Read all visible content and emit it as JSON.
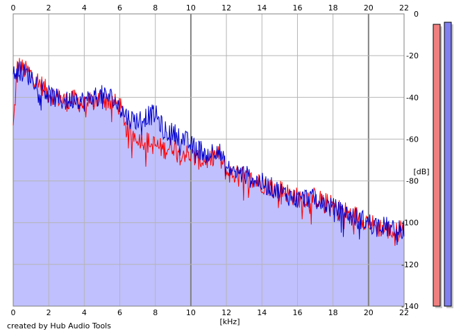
{
  "credit": "created by Hub Audio Tools",
  "chart_data": {
    "type": "area",
    "xlabel": "[kHz]",
    "ylabel": "[dB]",
    "xlim": [
      0,
      22
    ],
    "ylim": [
      -140,
      0
    ],
    "x_ticks": [
      0,
      2,
      4,
      6,
      8,
      10,
      12,
      14,
      16,
      18,
      20,
      22
    ],
    "y_ticks": [
      0,
      -20,
      -40,
      -60,
      -80,
      -100,
      -120,
      -140
    ],
    "y_tick_labels": [
      "0",
      "-20",
      "-40",
      "-60",
      "-80",
      "-100",
      "-120",
      "-140"
    ],
    "grid": true,
    "colors": {
      "fill": "#c0c0ff",
      "left": "#ff0000",
      "right": "#0000cc",
      "meter_left": "#f08080",
      "meter_right": "#8080f0",
      "meter_shadow": "#c8c8c8",
      "grid": "#b4b4b4",
      "grid_major": "#808080"
    },
    "series": [
      {
        "color": "#ff0000",
        "x": [
          0,
          0.25,
          0.5,
          1,
          1.5,
          2,
          2.5,
          3,
          3.5,
          4,
          4.5,
          5,
          5.5,
          6,
          6.5,
          7,
          7.5,
          8,
          8.5,
          9,
          9.5,
          10,
          10.5,
          11,
          11.5,
          12,
          12.5,
          13,
          13.5,
          14,
          14.5,
          15,
          15.5,
          16,
          16.5,
          17,
          17.5,
          18,
          18.5,
          19,
          19.5,
          20,
          20.5,
          21,
          21.5,
          22
        ],
        "values": [
          -55,
          -24,
          -26,
          -29,
          -33,
          -38,
          -40,
          -42,
          -41,
          -44,
          -42,
          -40,
          -42,
          -44,
          -56,
          -59,
          -61,
          -63,
          -65,
          -63,
          -66,
          -68,
          -70,
          -70,
          -67,
          -76,
          -77,
          -78,
          -80,
          -81,
          -83,
          -84,
          -86,
          -88,
          -88,
          -88,
          -90,
          -92,
          -94,
          -96,
          -97,
          -100,
          -102,
          -103,
          -105,
          -102
        ]
      },
      {
        "color": "#0000cc",
        "x": [
          0,
          0.25,
          0.5,
          1,
          1.5,
          2,
          2.5,
          3,
          3.5,
          4,
          4.5,
          5,
          5.5,
          6,
          6.5,
          7,
          7.5,
          8,
          8.5,
          9,
          9.5,
          10,
          10.5,
          11,
          11.5,
          12,
          12.5,
          13,
          13.5,
          14,
          14.5,
          15,
          15.5,
          16,
          16.5,
          17,
          17.5,
          18,
          18.5,
          19,
          19.5,
          20,
          20.5,
          21,
          21.5,
          22
        ],
        "values": [
          -30,
          -26,
          -28,
          -30,
          -34,
          -39,
          -41,
          -42,
          -40,
          -42,
          -40,
          -39,
          -40,
          -45,
          -50,
          -51,
          -49,
          -48,
          -56,
          -57,
          -59,
          -63,
          -65,
          -67,
          -64,
          -74,
          -76,
          -77,
          -79,
          -81,
          -83,
          -85,
          -87,
          -89,
          -88,
          -89,
          -91,
          -93,
          -95,
          -97,
          -98,
          -100,
          -101,
          -102,
          -104,
          -103
        ]
      }
    ],
    "meters": [
      {
        "color": "#f08080",
        "value": -5
      },
      {
        "color": "#8080f0",
        "value": -4
      }
    ]
  }
}
